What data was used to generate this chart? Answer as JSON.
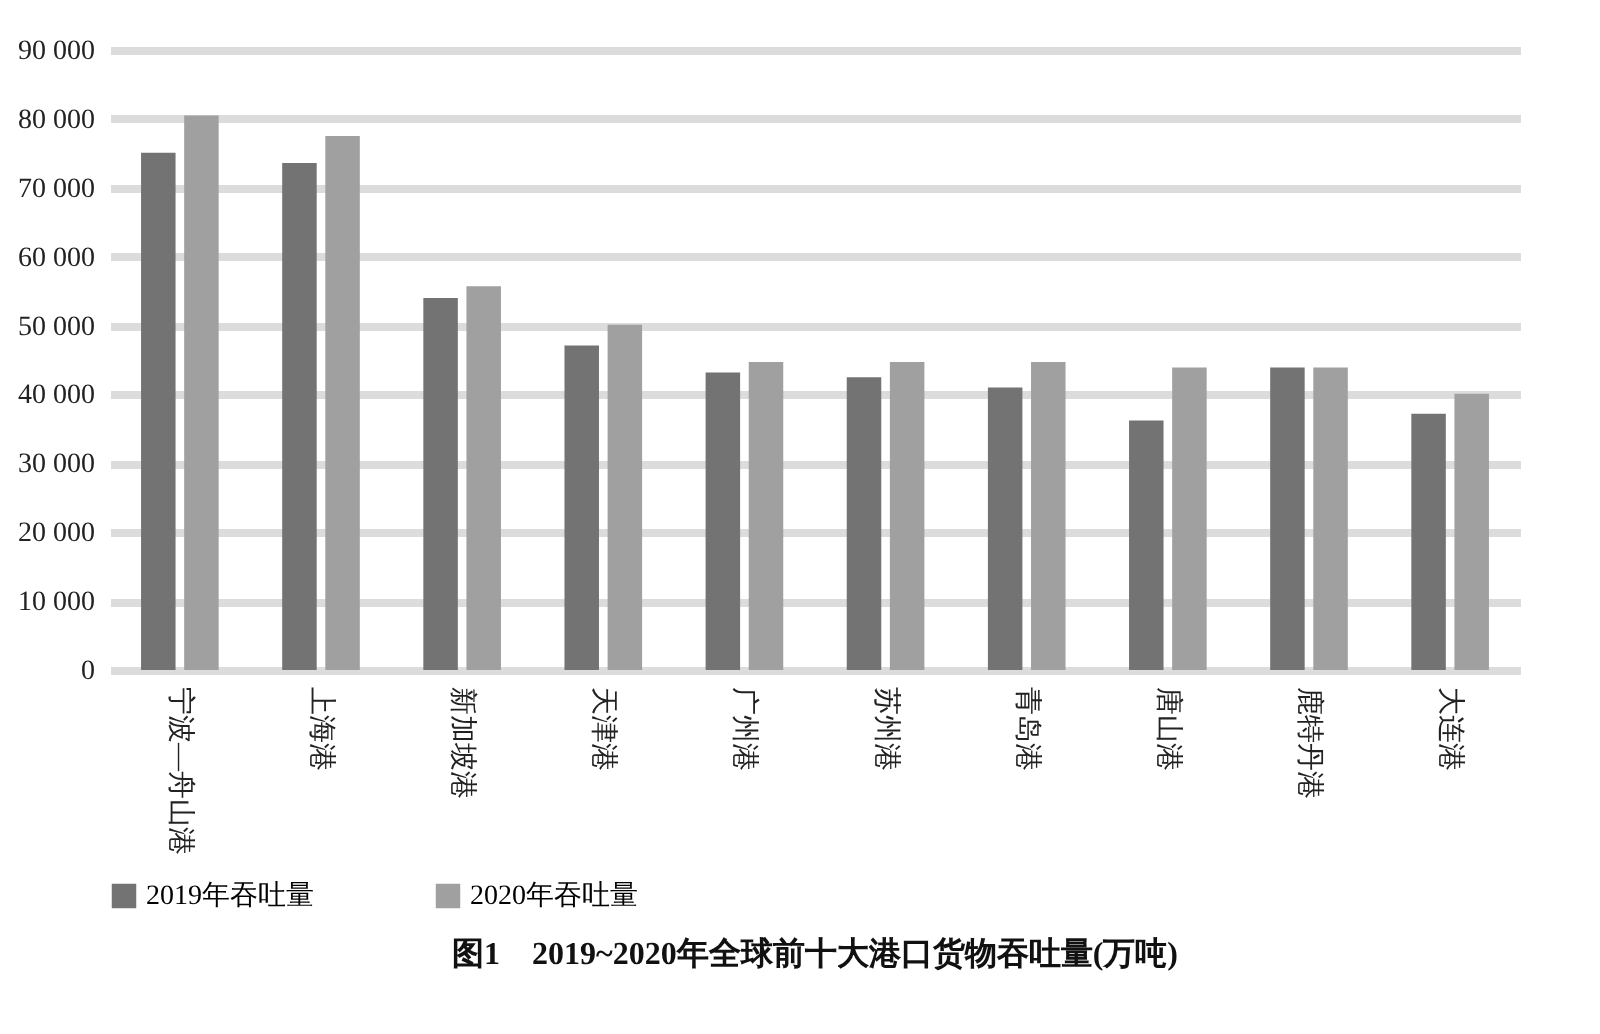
{
  "chart_data": {
    "type": "bar",
    "title": "图1　2019~2020年全球前十大港口货物吞吐量(万吨)",
    "categories": [
      "宁波—舟山港",
      "上海港",
      "新加坡港",
      "天津港",
      "广州港",
      "苏州港",
      "青岛港",
      "唐山港",
      "鹿特丹港",
      "大连港"
    ],
    "series": [
      {
        "name": "2019年吞吐量",
        "color": "#737373",
        "values": [
          75100,
          73600,
          54000,
          47100,
          43200,
          42500,
          41000,
          36200,
          43900,
          37200
        ]
      },
      {
        "name": "2020年吞吐量",
        "color": "#a0a0a0",
        "values": [
          80500,
          77500,
          55700,
          50100,
          44700,
          44700,
          44700,
          43900,
          43900,
          40100
        ]
      }
    ],
    "ylim": [
      0,
      90000
    ],
    "yticks": [
      0,
      {
        "value": 10000,
        "label": "10 000"
      },
      {
        "value": 20000,
        "label": "20 000"
      },
      {
        "value": 30000,
        "label": "30 000"
      },
      {
        "value": 40000,
        "label": "40 000"
      },
      {
        "value": 50000,
        "label": "50 000"
      },
      {
        "value": 60000,
        "label": "60 000"
      },
      {
        "value": 70000,
        "label": "70 000"
      },
      {
        "value": 80000,
        "label": "80 000"
      },
      {
        "value": 90000,
        "label": "90 000"
      }
    ],
    "grid": "y",
    "legend": "bottom"
  }
}
